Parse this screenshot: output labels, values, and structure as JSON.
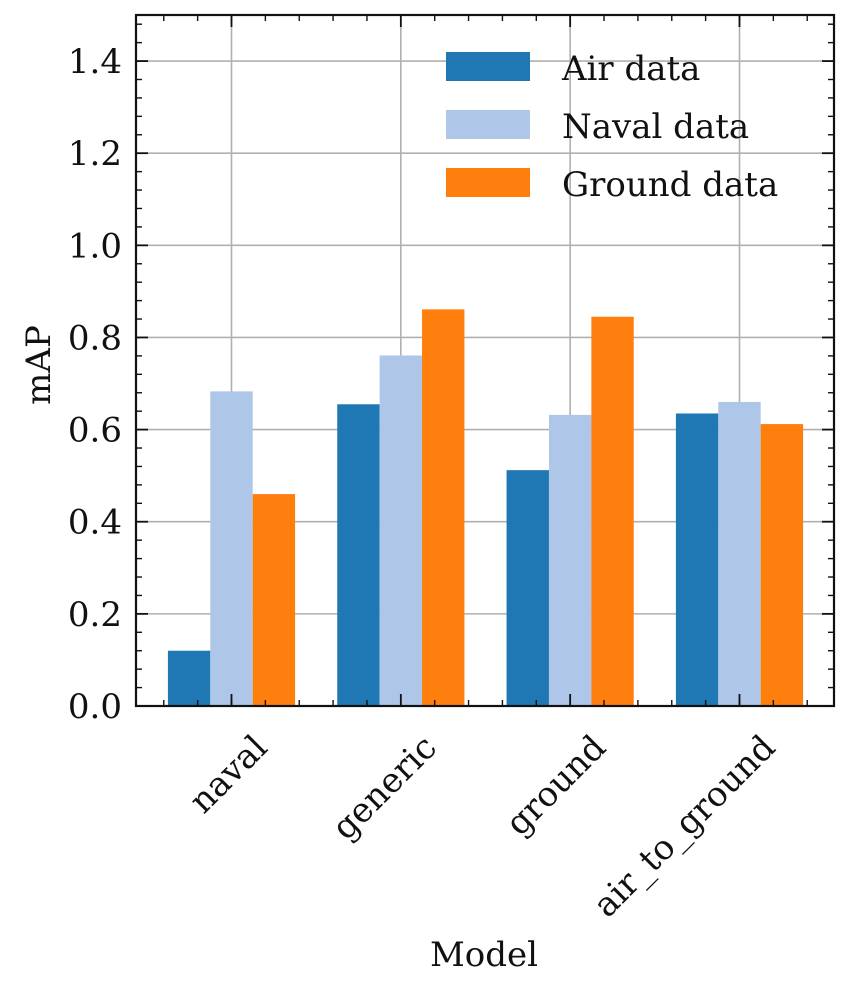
{
  "chart_data": {
    "type": "bar",
    "title": "",
    "xlabel": "Model",
    "ylabel": "mAP",
    "categories": [
      "naval",
      "generic",
      "ground",
      "air_to_ground"
    ],
    "series": [
      {
        "name": "Air data",
        "color": "#1f77b4",
        "values": [
          0.12,
          0.655,
          0.512,
          0.635
        ]
      },
      {
        "name": "Naval data",
        "color": "#aec7e8",
        "values": [
          0.683,
          0.761,
          0.632,
          0.66
        ]
      },
      {
        "name": "Ground data",
        "color": "#ff7f0e",
        "values": [
          0.46,
          0.861,
          0.845,
          0.612
        ]
      }
    ],
    "ylim": [
      0,
      1.5
    ],
    "yticks": [
      "0.0",
      "0.2",
      "0.4",
      "0.6",
      "0.8",
      "1.0",
      "1.2",
      "1.4"
    ],
    "grid": true,
    "legend_position": "top-right",
    "xtick_rotation_deg": -45
  }
}
